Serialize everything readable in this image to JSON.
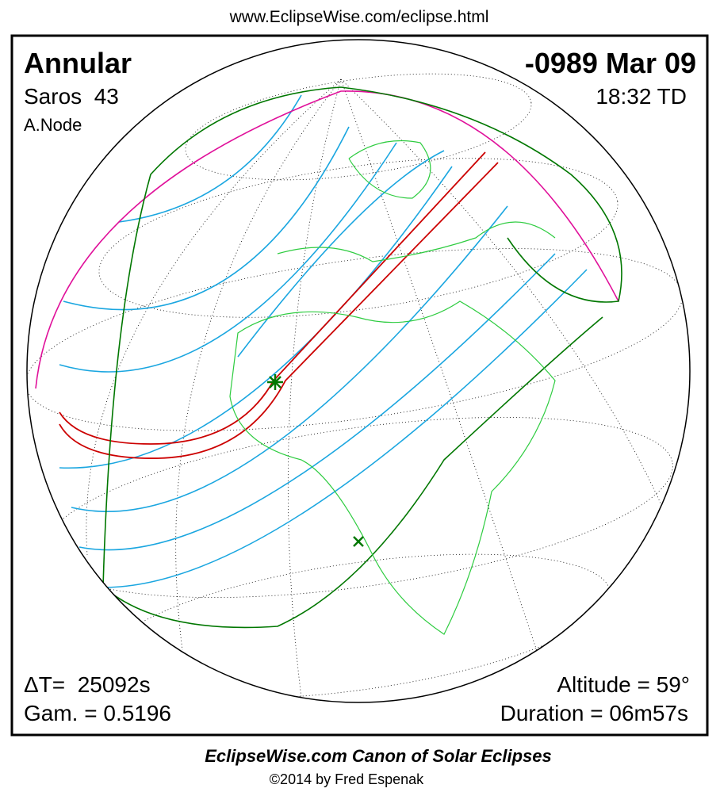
{
  "header": {
    "url": "www.EclipseWise.com/eclipse.html"
  },
  "eclipse": {
    "type": "Annular",
    "date": "-0989 Mar 09",
    "saros": "Saros  43",
    "time": "18:32 TD",
    "node": "A.Node",
    "delta_t": "ΔT=  25092s",
    "gamma": "Gam. = 0.5196",
    "altitude": "Altitude = 59°",
    "duration": "Duration = 06m57s"
  },
  "footer": {
    "title": "EclipseWise.com Canon of Solar Eclipses",
    "copyright": "©2014 by Fred Espenak"
  }
}
